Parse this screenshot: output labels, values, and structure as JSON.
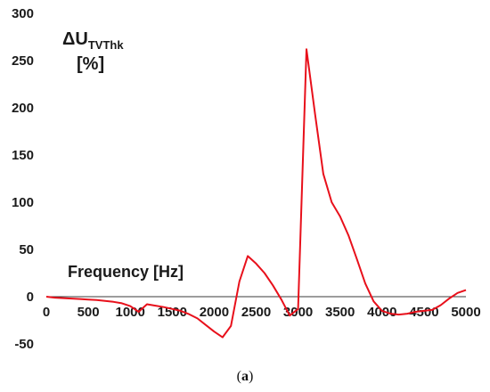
{
  "chart_data": {
    "type": "line",
    "ylabel_main": "ΔU",
    "ylabel_sub": "TVThk",
    "yunit": "[%]",
    "xlabel": "Frequency [Hz]",
    "xlim": [
      0,
      5000
    ],
    "ylim": [
      -50,
      300
    ],
    "xticks": [
      0,
      500,
      1000,
      1500,
      2000,
      2500,
      3000,
      3500,
      4000,
      4500,
      5000
    ],
    "yticks": [
      -50,
      0,
      50,
      100,
      150,
      200,
      250,
      300
    ],
    "grid": false,
    "line_color": "#e8101b",
    "series": [
      {
        "x": [
          0,
          100,
          200,
          300,
          400,
          500,
          600,
          700,
          800,
          900,
          1000,
          1100,
          1200,
          1300,
          1400,
          1500,
          1600,
          1700,
          1800,
          1900,
          2000,
          2100,
          2200,
          2300,
          2400,
          2500,
          2600,
          2700,
          2800,
          2900,
          3000,
          3100,
          3200,
          3300,
          3400,
          3500,
          3600,
          3700,
          3800,
          3900,
          4000,
          4100,
          4200,
          4300,
          4400,
          4500,
          4600,
          4700,
          4800,
          4900,
          5000
        ],
        "y": [
          0,
          -1,
          -1.5,
          -2,
          -2.5,
          -3,
          -3.5,
          -4.5,
          -5.5,
          -7,
          -10,
          -16,
          -8,
          -9.5,
          -11,
          -13,
          -15,
          -18.5,
          -23,
          -30,
          -37,
          -43,
          -31,
          16,
          43,
          35,
          25,
          12,
          -3,
          -20,
          -13,
          262,
          195,
          130,
          100,
          85,
          65,
          40,
          14,
          -5,
          -15,
          -18,
          -19,
          -18,
          -16,
          -15,
          -14,
          -9,
          -2,
          4,
          7
        ]
      }
    ]
  },
  "caption": {
    "open": "(",
    "letter": "a",
    "close": ")"
  }
}
